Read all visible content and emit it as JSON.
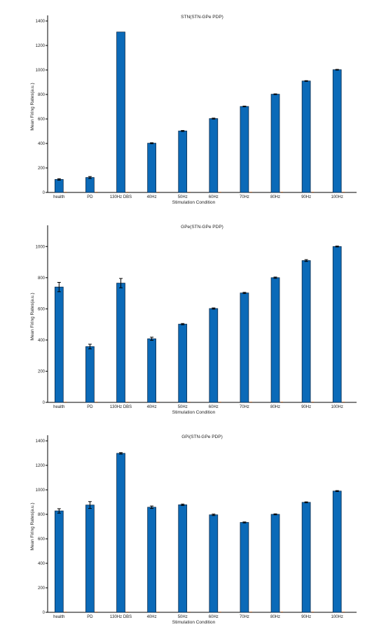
{
  "chart_data": [
    {
      "type": "bar",
      "title": "STN(STN-GPe PDP)",
      "xlabel": "Stimulation Condition",
      "ylabel": "Mean Firing Rates(a.u.)",
      "categories": [
        "health",
        "PD",
        "130Hz DBS",
        "40Hz",
        "50Hz",
        "60Hz",
        "70Hz",
        "80Hz",
        "90Hz",
        "100Hz"
      ],
      "values": [
        106,
        122,
        1310,
        402,
        502,
        603,
        702,
        802,
        910,
        1002
      ],
      "errors": [
        6,
        8,
        0,
        4,
        4,
        4,
        3,
        3,
        3,
        3
      ],
      "ylim": [
        0,
        1400
      ],
      "yticks": [
        0,
        200,
        400,
        600,
        800,
        1000,
        1200,
        1400
      ],
      "color": "#0b6ab8"
    },
    {
      "type": "bar",
      "title": "GPe(STN-GPe PDP)",
      "xlabel": "Stimulation Condition",
      "ylabel": "Mean Firing Rates(a.u.)",
      "categories": [
        "health",
        "PD",
        "130Hz DBS",
        "40Hz",
        "50Hz",
        "60Hz",
        "70Hz",
        "80Hz",
        "90Hz",
        "100Hz"
      ],
      "values": [
        740,
        358,
        765,
        408,
        502,
        602,
        702,
        800,
        910,
        1000
      ],
      "errors": [
        30,
        15,
        30,
        10,
        4,
        4,
        4,
        4,
        6,
        3
      ],
      "ylim": [
        0,
        1100
      ],
      "yticks": [
        0,
        200,
        400,
        600,
        800,
        1000
      ],
      "color": "#0b6ab8"
    },
    {
      "type": "bar",
      "title": "GPi(STN-GPe PDP)",
      "xlabel": "Stimulation Condition",
      "ylabel": "Mean Firing Rates(a.u.)",
      "categories": [
        "health",
        "PD",
        "130Hz DBS",
        "40Hz",
        "50Hz",
        "60Hz",
        "70Hz",
        "80Hz",
        "90Hz",
        "100Hz"
      ],
      "values": [
        828,
        876,
        1298,
        858,
        878,
        796,
        734,
        800,
        898,
        990
      ],
      "errors": [
        18,
        28,
        6,
        10,
        6,
        6,
        4,
        4,
        4,
        4
      ],
      "ylim": [
        0,
        1400
      ],
      "yticks": [
        0,
        200,
        400,
        600,
        800,
        1000,
        1200,
        1400
      ],
      "color": "#0b6ab8"
    }
  ]
}
